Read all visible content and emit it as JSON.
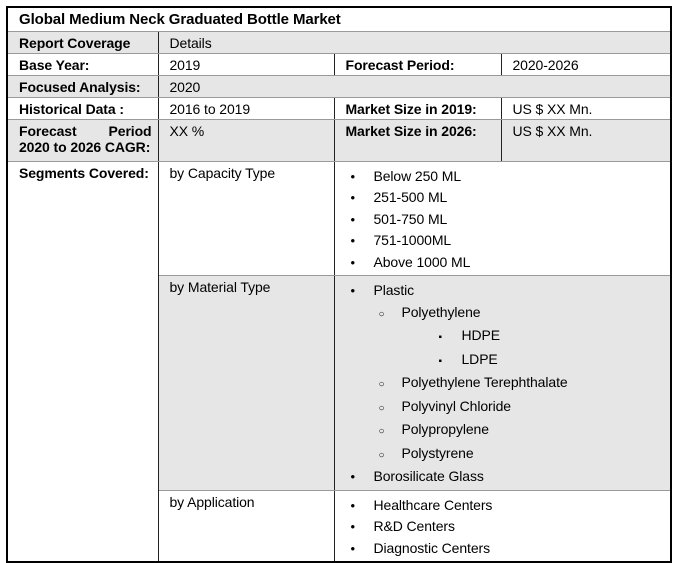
{
  "title": "Global Medium Neck Graduated Bottle Market",
  "info": {
    "report_coverage": {
      "label": "Report Coverage",
      "value": "Details"
    },
    "base_year": {
      "label": "Base Year:",
      "value": "2019"
    },
    "forecast_period": {
      "label": "Forecast Period:",
      "value": "2020-2026"
    },
    "focused_analysis": {
      "label": "Focused Analysis:",
      "value": "2020"
    },
    "historical_data": {
      "label": "Historical Data :",
      "value": "2016 to 2019"
    },
    "market_size_2019": {
      "label": "Market Size in 2019:",
      "value": "US $ XX Mn."
    },
    "cagr": {
      "label": "Forecast Period 2020 to 2026 CAGR:",
      "value": "XX %"
    },
    "market_size_2026": {
      "label": "Market Size in 2026:",
      "value": "US $ XX Mn."
    }
  },
  "segments": {
    "label": "Segments Covered:",
    "groups": [
      {
        "name": "by Capacity Type",
        "items": [
          {
            "level": 1,
            "text": "Below 250 ML"
          },
          {
            "level": 1,
            "text": "251-500 ML"
          },
          {
            "level": 1,
            "text": "501-750 ML"
          },
          {
            "level": 1,
            "text": "751-1000ML"
          },
          {
            "level": 1,
            "text": "Above 1000 ML"
          }
        ]
      },
      {
        "name": "by Material Type",
        "items": [
          {
            "level": 1,
            "text": "Plastic"
          },
          {
            "level": 2,
            "text": "Polyethylene"
          },
          {
            "level": 3,
            "text": "HDPE"
          },
          {
            "level": 3,
            "text": "LDPE"
          },
          {
            "level": 2,
            "text": "Polyethylene Terephthalate"
          },
          {
            "level": 2,
            "text": "Polyvinyl Chloride"
          },
          {
            "level": 2,
            "text": "Polypropylene"
          },
          {
            "level": 2,
            "text": "Polystyrene"
          },
          {
            "level": 1,
            "text": "Borosilicate Glass"
          }
        ]
      },
      {
        "name": "by Application",
        "items": [
          {
            "level": 1,
            "text": "Healthcare Centers"
          },
          {
            "level": 1,
            "text": "R&D Centers"
          },
          {
            "level": 1,
            "text": "Diagnostic Centers"
          }
        ]
      }
    ]
  },
  "list_style": {
    "1": "•",
    "2": "○",
    "3": "▪"
  },
  "colors": {
    "row_shade": "#e6e6e6",
    "border_outer": "#000000",
    "border_horizontal": "#9a9a9a",
    "border_vertical": "#222222",
    "text": "#000000",
    "background": "#ffffff"
  }
}
